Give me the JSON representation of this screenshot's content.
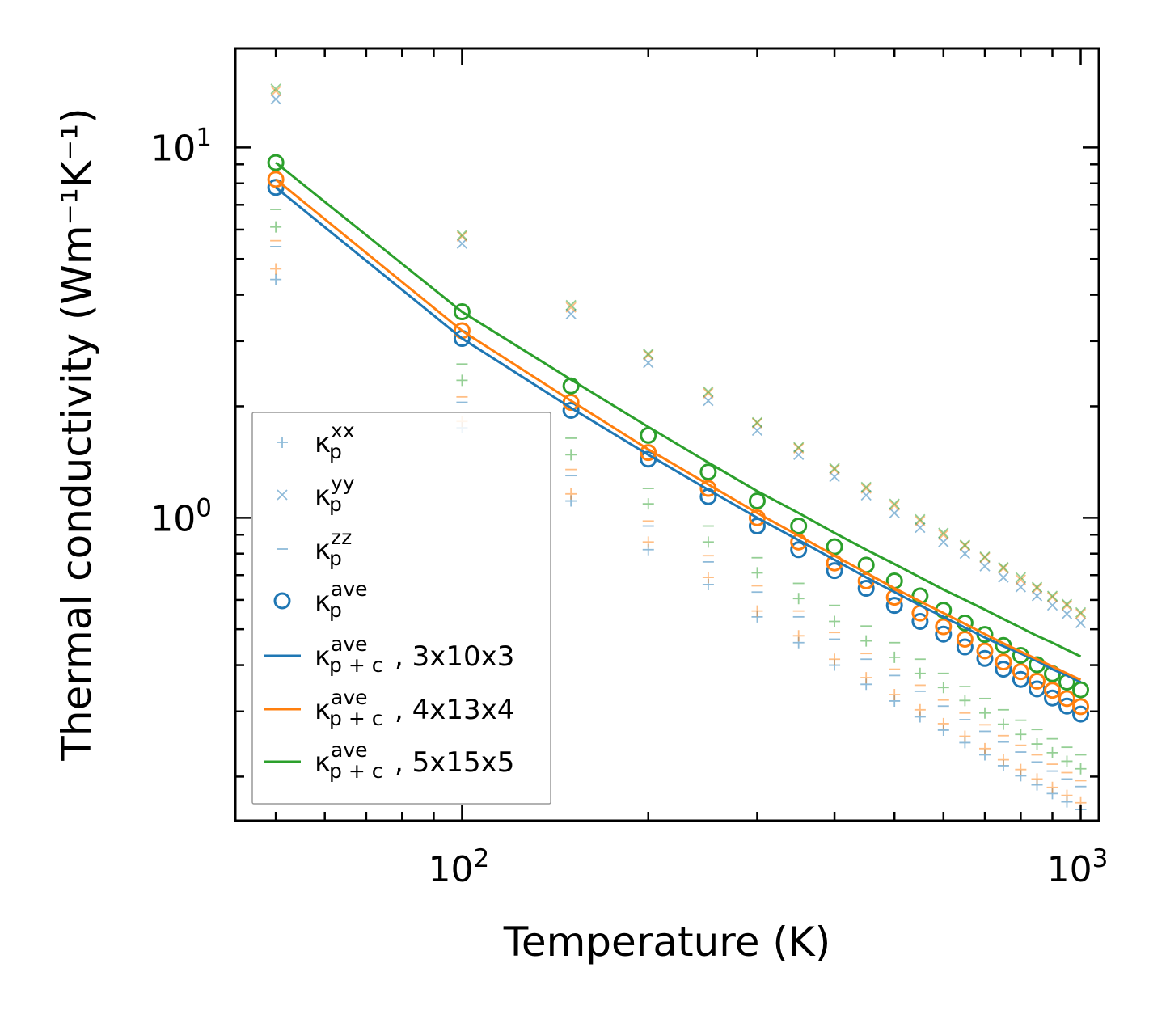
{
  "chart_data": {
    "type": "scatter",
    "title": "",
    "xlabel": "Temperature (K)",
    "ylabel": "Thermal conductivity (Wm⁻¹K⁻¹)",
    "xscale": "log",
    "yscale": "log",
    "xlim": [
      43,
      1070
    ],
    "ylim": [
      0.152,
      18.5
    ],
    "x_tick_labels": [
      {
        "value": 100,
        "base": "10",
        "exp": "2"
      },
      {
        "value": 1000,
        "base": "10",
        "exp": "3"
      }
    ],
    "y_tick_labels": [
      {
        "value": 1,
        "base": "10",
        "exp": "0"
      },
      {
        "value": 10,
        "base": "10",
        "exp": "1"
      }
    ],
    "legend_position": "lower-left",
    "colors": {
      "blue": "#1f77b4",
      "orange": "#ff7f0e",
      "green": "#2ca02c"
    },
    "x": [
      50,
      100,
      150,
      200,
      250,
      300,
      350,
      400,
      450,
      500,
      550,
      600,
      650,
      700,
      750,
      800,
      850,
      900,
      950,
      1000
    ],
    "series": [
      {
        "name": "3x10x3",
        "color": "#1f77b4",
        "xx": [
          4.4,
          1.75,
          1.11,
          0.82,
          0.66,
          0.54,
          0.46,
          0.4,
          0.355,
          0.32,
          0.29,
          0.267,
          0.247,
          0.229,
          0.214,
          0.201,
          0.19,
          0.18,
          0.171,
          0.163
        ],
        "yy": [
          13.5,
          5.5,
          3.55,
          2.62,
          2.07,
          1.72,
          1.48,
          1.29,
          1.15,
          1.03,
          0.94,
          0.86,
          0.8,
          0.74,
          0.69,
          0.65,
          0.615,
          0.58,
          0.55,
          0.52
        ],
        "zz": [
          5.4,
          2.05,
          1.3,
          0.95,
          0.76,
          0.63,
          0.54,
          0.47,
          0.415,
          0.375,
          0.34,
          0.31,
          0.285,
          0.265,
          0.248,
          0.233,
          0.219,
          0.207,
          0.197,
          0.188
        ],
        "ave": [
          7.8,
          3.05,
          1.95,
          1.44,
          1.14,
          0.95,
          0.82,
          0.72,
          0.645,
          0.58,
          0.525,
          0.485,
          0.448,
          0.417,
          0.39,
          0.366,
          0.345,
          0.326,
          0.31,
          0.295
        ],
        "pc": [
          7.8,
          3.05,
          1.98,
          1.48,
          1.19,
          1.0,
          0.87,
          0.77,
          0.69,
          0.63,
          0.58,
          0.54,
          0.505,
          0.475,
          0.45,
          0.43,
          0.41,
          0.39,
          0.375,
          0.36
        ]
      },
      {
        "name": "4x13x4",
        "color": "#ff7f0e",
        "xx": [
          4.7,
          1.82,
          1.16,
          0.86,
          0.69,
          0.56,
          0.48,
          0.415,
          0.37,
          0.333,
          0.303,
          0.278,
          0.257,
          0.238,
          0.222,
          0.209,
          0.197,
          0.187,
          0.178,
          0.17
        ],
        "yy": [
          14.2,
          5.75,
          3.7,
          2.75,
          2.17,
          1.8,
          1.54,
          1.35,
          1.2,
          1.08,
          0.98,
          0.9,
          0.84,
          0.78,
          0.73,
          0.68,
          0.645,
          0.61,
          0.58,
          0.55
        ],
        "zz": [
          5.6,
          2.12,
          1.35,
          0.98,
          0.79,
          0.655,
          0.56,
          0.49,
          0.43,
          0.39,
          0.353,
          0.322,
          0.297,
          0.276,
          0.258,
          0.243,
          0.229,
          0.216,
          0.205,
          0.195
        ],
        "ave": [
          8.2,
          3.2,
          2.05,
          1.5,
          1.2,
          1.0,
          0.86,
          0.755,
          0.675,
          0.61,
          0.553,
          0.508,
          0.47,
          0.437,
          0.408,
          0.384,
          0.362,
          0.342,
          0.325,
          0.309
        ],
        "pc": [
          8.2,
          3.2,
          2.07,
          1.53,
          1.23,
          1.03,
          0.895,
          0.79,
          0.71,
          0.645,
          0.595,
          0.553,
          0.517,
          0.485,
          0.458,
          0.435,
          0.415,
          0.397,
          0.38,
          0.365
        ]
      },
      {
        "name": "5x15x5",
        "color": "#2ca02c",
        "xx": [
          6.1,
          2.35,
          1.48,
          1.09,
          0.86,
          0.71,
          0.605,
          0.525,
          0.465,
          0.42,
          0.38,
          0.348,
          0.321,
          0.297,
          0.277,
          0.26,
          0.245,
          0.232,
          0.22,
          0.21
        ],
        "yy": [
          14.4,
          5.8,
          3.75,
          2.77,
          2.19,
          1.81,
          1.55,
          1.36,
          1.21,
          1.09,
          0.99,
          0.91,
          0.845,
          0.785,
          0.735,
          0.69,
          0.65,
          0.615,
          0.585,
          0.555
        ],
        "zz": [
          6.8,
          2.6,
          1.64,
          1.2,
          0.95,
          0.78,
          0.665,
          0.58,
          0.51,
          0.46,
          0.415,
          0.38,
          0.35,
          0.325,
          0.303,
          0.284,
          0.268,
          0.253,
          0.24,
          0.229
        ],
        "ave": [
          9.1,
          3.6,
          2.27,
          1.67,
          1.33,
          1.11,
          0.95,
          0.835,
          0.745,
          0.675,
          0.615,
          0.563,
          0.52,
          0.484,
          0.452,
          0.425,
          0.401,
          0.379,
          0.36,
          0.343
        ],
        "pc": [
          9.1,
          3.6,
          2.36,
          1.76,
          1.41,
          1.18,
          1.03,
          0.91,
          0.82,
          0.75,
          0.69,
          0.64,
          0.6,
          0.565,
          0.533,
          0.505,
          0.48,
          0.46,
          0.44,
          0.422
        ]
      }
    ],
    "legend": [
      {
        "symbol": "+",
        "sub": "p",
        "sup": "xx",
        "text": ""
      },
      {
        "symbol": "x",
        "sub": "p",
        "sup": "yy",
        "text": ""
      },
      {
        "symbol": "-",
        "sub": "p",
        "sup": "zz",
        "text": ""
      },
      {
        "symbol": "o",
        "sub": "p",
        "sup": "ave",
        "text": ""
      },
      {
        "symbol": "line-blue",
        "sub": "p + c",
        "sup": "ave",
        "text": ", 3x10x3"
      },
      {
        "symbol": "line-orange",
        "sub": "p + c",
        "sup": "ave",
        "text": ", 4x13x4"
      },
      {
        "symbol": "line-green",
        "sub": "p + c",
        "sup": "ave",
        "text": ", 5x15x5"
      }
    ],
    "legend_kappa": "κ"
  }
}
